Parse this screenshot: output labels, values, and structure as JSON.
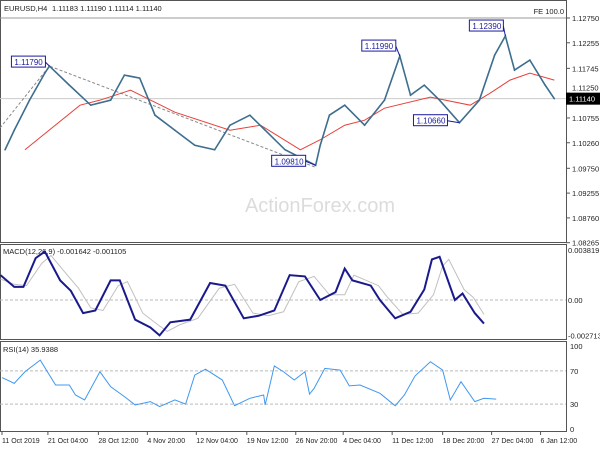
{
  "header": {
    "symbol": "EURUSD,H4",
    "ohlc": "1.11183 1.11190 1.11114 1.11140",
    "corner": "FE 100.0"
  },
  "watermark": "ActionForex.com",
  "colors": {
    "price": "#3d6e8e",
    "ma": "#e8403a",
    "macd": "#1a1a8c",
    "signal": "#c0c0c0",
    "rsi": "#3f98f0",
    "label": "#1a1aa0"
  },
  "chart_data": [
    {
      "type": "line",
      "title": "EURUSD,H4",
      "x_unit": "H4 bar",
      "x_ticks": [
        0,
        30,
        63,
        95,
        127,
        160,
        192,
        223,
        255,
        288,
        320,
        352
      ],
      "x_tick_labels": [
        "11 Oct 2019",
        "21 Oct 04:00",
        "28 Oct 12:00",
        "4 Nov 20:00",
        "12 Nov 04:00",
        "19 Nov 12:00",
        "26 Nov 20:00",
        "4 Dec 04:00",
        "11 Dec 12:00",
        "18 Dec 20:00",
        "27 Dec 04:00",
        "6 Jan 12:00"
      ],
      "ylim": [
        1.08265,
        1.1299
      ],
      "y_ticks": [
        "1.12750",
        "1.12255",
        "1.11745",
        "1.11250",
        "1.10755",
        "1.10260",
        "1.09750",
        "1.09255",
        "1.08760",
        "1.08265"
      ],
      "y_tick_values": [
        1.1275,
        1.12255,
        1.11745,
        1.1125,
        1.10755,
        1.1026,
        1.0975,
        1.09255,
        1.0876,
        1.08265
      ],
      "current_price": "1.11140",
      "series": [
        {
          "role": "price",
          "x": [
            2,
            8,
            18,
            28,
            31,
            44,
            58,
            71,
            80,
            90,
            100,
            113,
            126,
            139,
            149,
            162,
            172,
            185,
            205,
            208,
            214,
            224,
            237,
            250,
            260,
            267,
            276,
            286,
            299,
            312,
            322,
            329,
            335,
            345,
            355,
            361
          ],
          "y": [
            1.1012,
            1.1051,
            1.1111,
            1.1165,
            1.1179,
            1.1141,
            1.1101,
            1.1111,
            1.1161,
            1.1155,
            1.1081,
            1.1051,
            1.1021,
            1.1012,
            1.1061,
            1.1081,
            1.1051,
            1.1012,
            1.0981,
            1.1021,
            1.1081,
            1.1101,
            1.1061,
            1.1111,
            1.1199,
            1.1121,
            1.1141,
            1.1111,
            1.1066,
            1.1111,
            1.1201,
            1.1239,
            1.1171,
            1.1191,
            1.1141,
            1.1114
          ]
        },
        {
          "role": "moving-average",
          "x": [
            15,
            51,
            64,
            84,
            113,
            149,
            169,
            195,
            208,
            224,
            237,
            250,
            280,
            306,
            319,
            332,
            345,
            361
          ],
          "y": [
            1.1012,
            1.1101,
            1.1111,
            1.1131,
            1.1087,
            1.1051,
            1.1061,
            1.1012,
            1.1032,
            1.1061,
            1.1071,
            1.1095,
            1.1117,
            1.1101,
            1.1125,
            1.1151,
            1.1165,
            1.1151
          ]
        }
      ],
      "annotations": [
        {
          "text": "1.11790",
          "x": 31,
          "y": 1.1179
        },
        {
          "text": "1.09810",
          "x": 205,
          "y": 1.0981
        },
        {
          "text": "1.11990",
          "x": 260,
          "y": 1.1199
        },
        {
          "text": "1.10660",
          "x": 299,
          "y": 1.1066
        },
        {
          "text": "1.12390",
          "x": 329,
          "y": 1.1239
        }
      ]
    },
    {
      "type": "line",
      "title": "MACD(12,26,9) -0.001642 -0.001105",
      "ylim": [
        -0.002713,
        0.003819
      ],
      "y_ticks": [
        "0.003819",
        "0.00",
        "-0.002713"
      ],
      "series": [
        {
          "role": "macd",
          "x": [
            -1,
            8,
            14,
            22,
            28,
            38,
            45,
            53,
            61,
            71,
            77,
            87,
            97,
            103,
            110,
            123,
            136,
            146,
            158,
            168,
            178,
            188,
            198,
            208,
            218,
            224,
            229,
            241,
            247,
            257,
            267,
            276,
            281,
            286,
            296,
            301,
            309,
            315
          ],
          "y": [
            0.0019,
            0.001,
            0.001,
            0.0032,
            0.0037,
            0.0015,
            0.0007,
            -0.001,
            -0.0008,
            0.0015,
            0.0015,
            -0.0015,
            -0.0021,
            -0.0027,
            -0.0017,
            -0.0015,
            0.0013,
            0.0011,
            -0.0014,
            -0.0012,
            -0.0008,
            0.0019,
            0.0018,
            0.0,
            0.0006,
            0.0024,
            0.0015,
            0.0011,
            0.0,
            -0.0014,
            -0.0009,
            0.0008,
            0.0031,
            0.0033,
            0.0,
            0.0005,
            -0.001,
            -0.0018
          ]
        },
        {
          "role": "signal",
          "x": [
            -1,
            8,
            16,
            26,
            32,
            42,
            50,
            58,
            66,
            76,
            82,
            92,
            102,
            108,
            116,
            128,
            142,
            152,
            164,
            174,
            184,
            194,
            204,
            214,
            224,
            230,
            236,
            246,
            252,
            262,
            272,
            282,
            288,
            292,
            302,
            308,
            315
          ],
          "y": [
            0.0016,
            0.0012,
            0.0011,
            0.0028,
            0.0034,
            0.002,
            0.0009,
            -0.0006,
            -0.0008,
            0.0011,
            0.0014,
            -0.001,
            -0.0019,
            -0.0024,
            -0.0019,
            -0.0014,
            0.0009,
            0.0012,
            -0.001,
            -0.0012,
            -0.0009,
            0.0014,
            0.0018,
            0.0004,
            0.0004,
            0.0019,
            0.0016,
            0.0011,
            0.0002,
            -0.0011,
            -0.001,
            0.0004,
            0.0026,
            0.0031,
            0.0008,
            0.0002,
            -0.0011
          ]
        }
      ]
    },
    {
      "type": "line",
      "title": "RSI(14) 35.9388",
      "ylim": [
        0,
        100
      ],
      "y_ticks": [
        "100",
        "70",
        "30",
        "0"
      ],
      "levels": [
        70,
        30
      ],
      "series": [
        {
          "role": "rsi",
          "x": [
            0,
            8,
            15,
            25,
            35,
            44,
            48,
            54,
            64,
            71,
            80,
            87,
            97,
            103,
            113,
            120,
            126,
            133,
            144,
            152,
            162,
            171,
            172,
            178,
            184,
            191,
            198,
            201,
            204,
            211,
            221,
            227,
            234,
            247,
            257,
            263,
            270,
            280,
            288,
            293,
            300,
            309,
            315,
            323
          ],
          "y": [
            62,
            55,
            69,
            83,
            53,
            53,
            41,
            35,
            69,
            51,
            39,
            29,
            33,
            27,
            35,
            30,
            65,
            72,
            59,
            28,
            37,
            41,
            29,
            76,
            69,
            59,
            69,
            42,
            49,
            73,
            71,
            52,
            53,
            43,
            28,
            41,
            64,
            81,
            71,
            35,
            57,
            33,
            37,
            36
          ]
        }
      ]
    }
  ]
}
